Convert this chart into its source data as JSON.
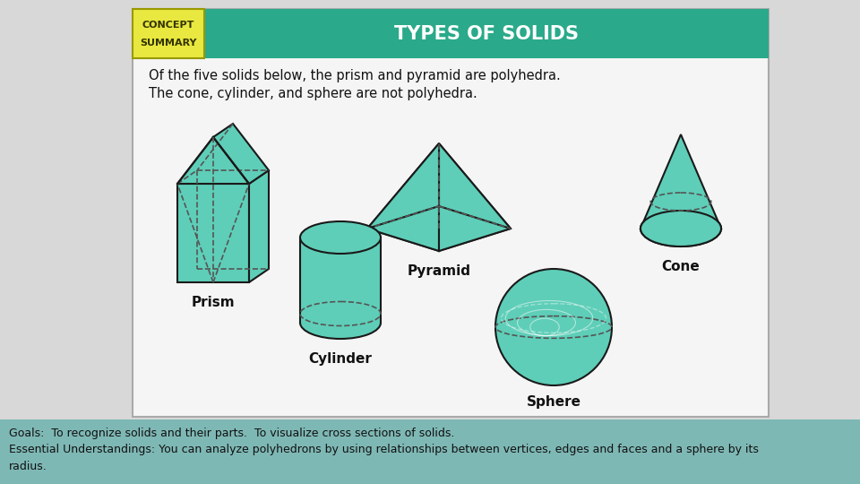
{
  "title": "TYPES OF SOLIDS",
  "concept_label1": "CONCEPT",
  "concept_label2": "SUMMARY",
  "description_line1": "Of the five solids below, the prism and pyramid are polyhedra.",
  "description_line2": "The cone, cylinder, and sphere are not polyhedra.",
  "labels": [
    "Prism",
    "Pyramid",
    "Cone",
    "Cylinder",
    "Sphere"
  ],
  "bg_color": "#d8d8d8",
  "card_bg": "#f5f5f5",
  "header_color": "#2aaa8a",
  "concept_box_color": "#e8e840",
  "footer_bg": "#7eb8b5",
  "solid_fill": "#5eceb8",
  "solid_edge": "#1a1a1a",
  "dashed_color": "#555555",
  "footer_text1": "Goals:  To recognize solids and their parts.  To visualize cross sections of solids.",
  "footer_text2": "Essential Understandings: You can analyze polyhedrons by using relationships between vertices, edges and faces and a sphere by its",
  "footer_text3": "radius."
}
